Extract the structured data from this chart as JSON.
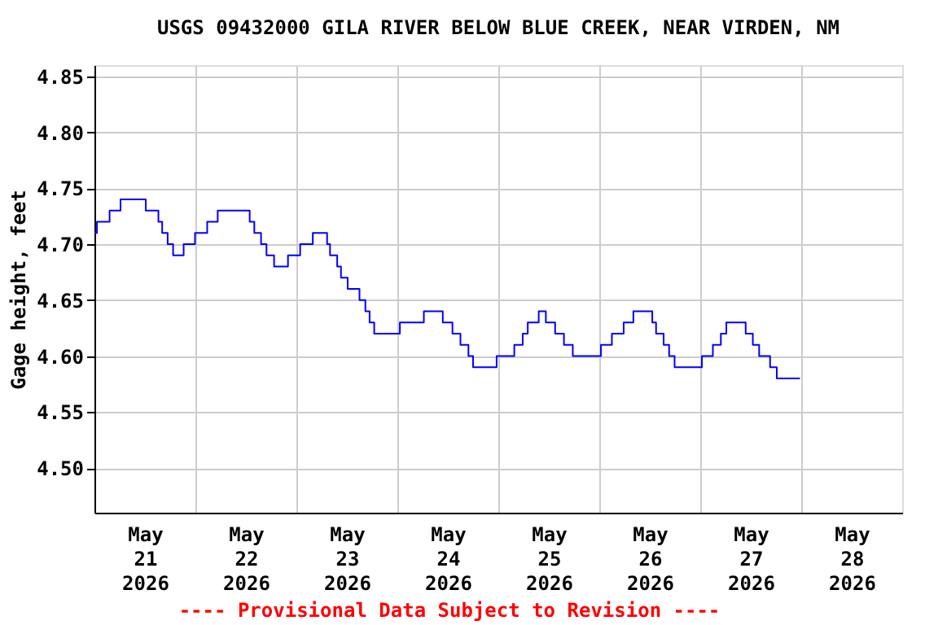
{
  "chart_data": {
    "type": "step",
    "title": "USGS 09432000 GILA RIVER BELOW BLUE CREEK, NEAR VIRDEN, NM",
    "ylabel": "Gage height, feet",
    "annotations": [
      "---- Provisional Data Subject to Revision ----"
    ],
    "xlim": [
      "2026-05-21T00:00",
      "2026-05-29T00:00"
    ],
    "xticks": [
      {
        "value": "2026-05-21T12:00",
        "label": "May\n21\n2026"
      },
      {
        "value": "2026-05-22T12:00",
        "label": "May\n22\n2026"
      },
      {
        "value": "2026-05-23T12:00",
        "label": "May\n23\n2026"
      },
      {
        "value": "2026-05-24T12:00",
        "label": "May\n24\n2026"
      },
      {
        "value": "2026-05-25T12:00",
        "label": "May\n25\n2026"
      },
      {
        "value": "2026-05-26T12:00",
        "label": "May\n26\n2026"
      },
      {
        "value": "2026-05-27T12:00",
        "label": "May\n27\n2026"
      },
      {
        "value": "2026-05-28T12:00",
        "label": "May\n28\n2026"
      },
      {
        "value": "2026-05-22T00:00",
        "label": null
      },
      {
        "value": "2026-05-23T00:00",
        "label": null
      },
      {
        "value": "2026-05-24T00:00",
        "label": null
      },
      {
        "value": "2026-05-25T00:00",
        "label": null
      },
      {
        "value": "2026-05-26T00:00",
        "label": null
      },
      {
        "value": "2026-05-27T00:00",
        "label": null
      },
      {
        "value": "2026-05-28T00:00",
        "label": null
      }
    ],
    "ylim": [
      4.46,
      4.86
    ],
    "yticks": [
      {
        "value": 4.5,
        "label": "4.50"
      },
      {
        "value": 4.55,
        "label": "4.55"
      },
      {
        "value": 4.6,
        "label": "4.60"
      },
      {
        "value": 4.65,
        "label": "4.65"
      },
      {
        "value": 4.7,
        "label": "4.70"
      },
      {
        "value": 4.75,
        "label": "4.75"
      },
      {
        "value": 4.8,
        "label": "4.80"
      },
      {
        "value": 4.85,
        "label": "4.85"
      }
    ],
    "grid": true,
    "line_style": "solid",
    "x": [
      "2026-05-21T00:00",
      "2026-05-21T00:36",
      "2026-05-21T03:36",
      "2026-05-21T06:12",
      "2026-05-21T12:12",
      "2026-05-21T15:12",
      "2026-05-21T16:06",
      "2026-05-21T17:24",
      "2026-05-21T18:42",
      "2026-05-21T21:12",
      "2026-05-21T23:54",
      "2026-05-22T02:48",
      "2026-05-22T05:18",
      "2026-05-22T12:54",
      "2026-05-22T14:00",
      "2026-05-22T15:36",
      "2026-05-22T16:54",
      "2026-05-22T18:42",
      "2026-05-22T22:00",
      "2026-05-23T00:54",
      "2026-05-23T03:54",
      "2026-05-23T07:18",
      "2026-05-23T08:00",
      "2026-05-23T09:42",
      "2026-05-23T10:36",
      "2026-05-23T12:12",
      "2026-05-23T15:00",
      "2026-05-23T16:24",
      "2026-05-23T17:24",
      "2026-05-23T18:30",
      "2026-05-24T00:36",
      "2026-05-24T06:18",
      "2026-05-24T10:48",
      "2026-05-24T13:06",
      "2026-05-24T15:00",
      "2026-05-24T16:54",
      "2026-05-24T18:00",
      "2026-05-24T23:36",
      "2026-05-25T03:48",
      "2026-05-25T05:48",
      "2026-05-25T07:00",
      "2026-05-25T09:36",
      "2026-05-25T11:18",
      "2026-05-25T13:30",
      "2026-05-25T15:36",
      "2026-05-25T17:42",
      "2026-05-26T00:24",
      "2026-05-26T03:00",
      "2026-05-26T05:48",
      "2026-05-26T08:06",
      "2026-05-26T12:36",
      "2026-05-26T13:30",
      "2026-05-26T15:18",
      "2026-05-26T16:36",
      "2026-05-26T17:54",
      "2026-05-27T00:24",
      "2026-05-27T03:00",
      "2026-05-27T04:54",
      "2026-05-27T06:12",
      "2026-05-27T10:48",
      "2026-05-27T12:30",
      "2026-05-27T14:00",
      "2026-05-27T16:36",
      "2026-05-27T18:12",
      "2026-05-27T23:42"
    ],
    "series": [
      {
        "color": "#0000ff",
        "values": [
          4.71,
          4.72,
          4.73,
          4.74,
          4.73,
          4.72,
          4.71,
          4.7,
          4.69,
          4.7,
          4.71,
          4.72,
          4.73,
          4.72,
          4.71,
          4.7,
          4.69,
          4.68,
          4.69,
          4.7,
          4.71,
          4.7,
          4.69,
          4.68,
          4.67,
          4.66,
          4.65,
          4.64,
          4.63,
          4.62,
          4.63,
          4.64,
          4.63,
          4.62,
          4.61,
          4.6,
          4.59,
          4.6,
          4.61,
          4.62,
          4.63,
          4.64,
          4.63,
          4.62,
          4.61,
          4.6,
          4.61,
          4.62,
          4.63,
          4.64,
          4.63,
          4.62,
          4.61,
          4.6,
          4.59,
          4.6,
          4.61,
          4.62,
          4.63,
          4.62,
          4.61,
          4.6,
          4.59,
          4.58,
          4.58
        ]
      }
    ]
  }
}
